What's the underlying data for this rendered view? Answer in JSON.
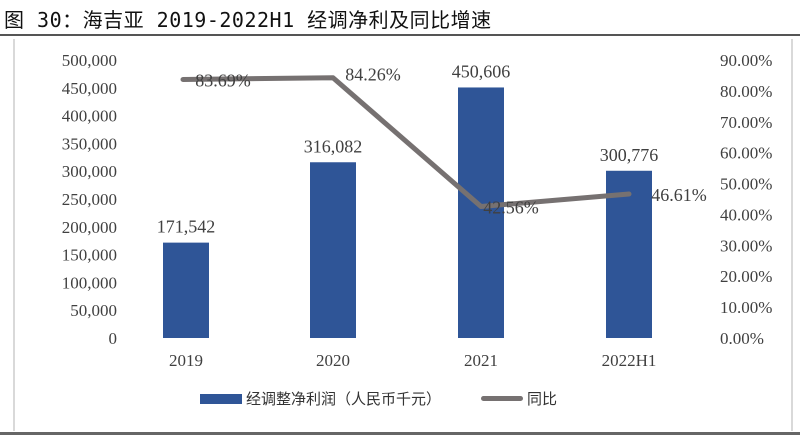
{
  "title": "图 30：海吉亚 2019-2022H1 经调净利及同比增速",
  "chart_data": {
    "type": "bar+line",
    "categories": [
      "2019",
      "2020",
      "2021",
      "2022H1"
    ],
    "series": [
      {
        "name": "经调整净利润（人民币千元）",
        "type": "bar",
        "axis": "left",
        "values": [
          171542,
          316082,
          450606,
          300776
        ],
        "labels": [
          "171,542",
          "316,082",
          "450,606",
          "300,776"
        ],
        "color": "#2f5597"
      },
      {
        "name": "同比",
        "type": "line",
        "axis": "right",
        "values": [
          83.69,
          84.26,
          42.56,
          46.61
        ],
        "labels": [
          "83.69%",
          "84.26%",
          "42.56%",
          "46.61%"
        ],
        "color": "#767171"
      }
    ],
    "left_axis": {
      "ylim": [
        0,
        500000
      ],
      "ticks": [
        "0",
        "50,000",
        "100,000",
        "150,000",
        "200,000",
        "250,000",
        "300,000",
        "350,000",
        "400,000",
        "450,000",
        "500,000"
      ]
    },
    "right_axis": {
      "ylim": [
        0,
        90
      ],
      "ticks": [
        "0.00%",
        "10.00%",
        "20.00%",
        "30.00%",
        "40.00%",
        "50.00%",
        "60.00%",
        "70.00%",
        "80.00%",
        "90.00%"
      ]
    },
    "grid": false,
    "legend": "bottom"
  }
}
